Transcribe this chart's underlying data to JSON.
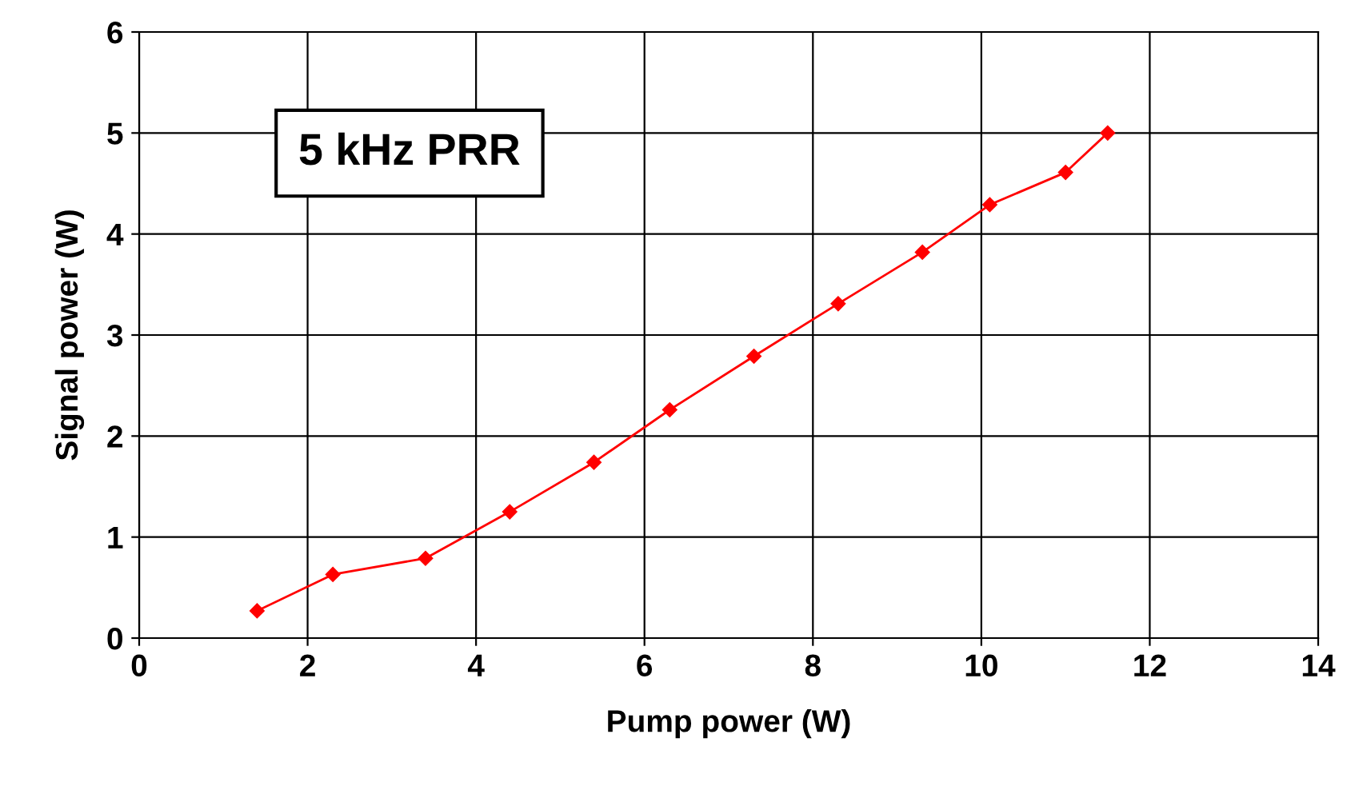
{
  "chart_data": {
    "type": "line",
    "xlabel": "Pump power (W)",
    "ylabel": "Signal power (W)",
    "annotations": [
      "5 kHz PRR"
    ],
    "series": [
      {
        "color": "#ff0000",
        "x": [
          1.4,
          2.3,
          3.4,
          4.4,
          5.4,
          6.3,
          7.3,
          8.3,
          9.3,
          10.1,
          11.0,
          11.5
        ],
        "values": [
          0.27,
          0.63,
          0.79,
          1.25,
          1.74,
          2.26,
          2.79,
          3.31,
          3.82,
          4.29,
          4.61,
          5.0
        ]
      }
    ],
    "xlim": [
      0,
      14
    ],
    "xticks": [
      0,
      2,
      4,
      6,
      8,
      10,
      12,
      14
    ],
    "ylim": [
      0,
      6
    ],
    "yticks": [
      0,
      1,
      2,
      3,
      4,
      5,
      6
    ],
    "grid": true,
    "marker": "diamond",
    "line_style": "solid",
    "legend": false
  }
}
